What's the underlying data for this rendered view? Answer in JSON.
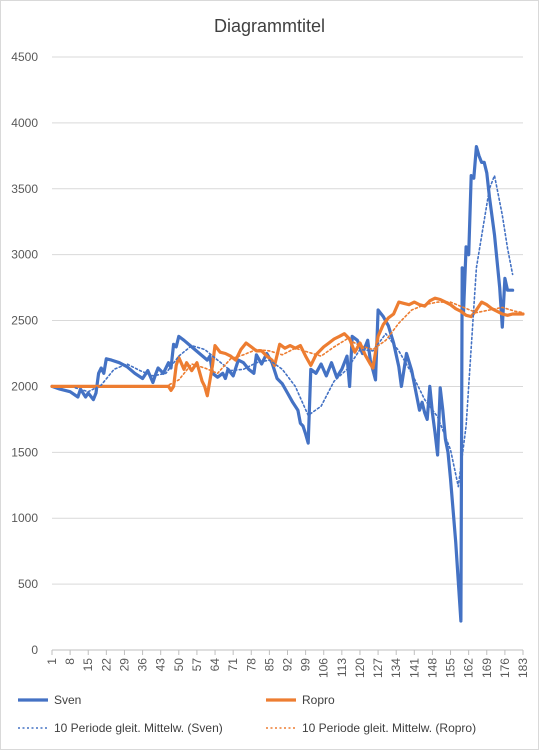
{
  "chart_data": {
    "type": "line",
    "title": "Diagrammtitel",
    "xlabel": "",
    "ylabel": "",
    "ylim": [
      0,
      4500
    ],
    "yticks": [
      0,
      500,
      1000,
      1500,
      2000,
      2500,
      3000,
      3500,
      4000,
      4500
    ],
    "xlim": [
      1,
      183
    ],
    "xticks": [
      1,
      8,
      15,
      22,
      29,
      36,
      43,
      50,
      57,
      64,
      71,
      78,
      85,
      92,
      99,
      106,
      113,
      120,
      127,
      134,
      141,
      148,
      155,
      162,
      169,
      176,
      183
    ],
    "grid": "horizontal",
    "legend_position": "bottom",
    "colors": {
      "sven": "#4472c4",
      "ropro": "#ed7d31",
      "grid": "#d9d9d9"
    },
    "legend": [
      {
        "label": "Sven",
        "style": "solid",
        "color": "#4472c4"
      },
      {
        "label": "Ropro",
        "style": "solid",
        "color": "#ed7d31"
      },
      {
        "label": "10 Periode gleit. Mittelw. (Sven)",
        "style": "dotted",
        "color": "#4472c4"
      },
      {
        "label": "10 Periode gleit. Mittelw. (Ropro)",
        "style": "dotted",
        "color": "#ed7d31"
      }
    ],
    "series": [
      {
        "name": "Sven",
        "style": "solid",
        "color": "#4472c4",
        "points": [
          [
            1,
            2000
          ],
          [
            4,
            1980
          ],
          [
            8,
            1960
          ],
          [
            11,
            1920
          ],
          [
            12,
            1980
          ],
          [
            14,
            1920
          ],
          [
            15,
            1950
          ],
          [
            17,
            1900
          ],
          [
            18,
            1950
          ],
          [
            19,
            2100
          ],
          [
            20,
            2140
          ],
          [
            21,
            2100
          ],
          [
            22,
            2210
          ],
          [
            24,
            2200
          ],
          [
            27,
            2180
          ],
          [
            30,
            2150
          ],
          [
            33,
            2100
          ],
          [
            36,
            2060
          ],
          [
            38,
            2120
          ],
          [
            40,
            2030
          ],
          [
            41,
            2090
          ],
          [
            42,
            2140
          ],
          [
            44,
            2100
          ],
          [
            46,
            2180
          ],
          [
            47,
            2140
          ],
          [
            48,
            2320
          ],
          [
            49,
            2300
          ],
          [
            50,
            2380
          ],
          [
            52,
            2350
          ],
          [
            55,
            2300
          ],
          [
            58,
            2250
          ],
          [
            61,
            2200
          ],
          [
            62,
            2230
          ],
          [
            63,
            2100
          ],
          [
            65,
            2070
          ],
          [
            67,
            2100
          ],
          [
            68,
            2060
          ],
          [
            69,
            2130
          ],
          [
            71,
            2080
          ],
          [
            73,
            2200
          ],
          [
            75,
            2180
          ],
          [
            77,
            2130
          ],
          [
            79,
            2100
          ],
          [
            80,
            2240
          ],
          [
            82,
            2170
          ],
          [
            84,
            2250
          ],
          [
            86,
            2180
          ],
          [
            88,
            2060
          ],
          [
            90,
            2020
          ],
          [
            92,
            1950
          ],
          [
            94,
            1880
          ],
          [
            96,
            1820
          ],
          [
            97,
            1720
          ],
          [
            98,
            1700
          ],
          [
            99,
            1640
          ],
          [
            100,
            1570
          ],
          [
            101,
            2130
          ],
          [
            103,
            2100
          ],
          [
            105,
            2170
          ],
          [
            107,
            2080
          ],
          [
            109,
            2180
          ],
          [
            111,
            2070
          ],
          [
            113,
            2130
          ],
          [
            115,
            2230
          ],
          [
            116,
            2000
          ],
          [
            117,
            2380
          ],
          [
            119,
            2350
          ],
          [
            121,
            2250
          ],
          [
            123,
            2350
          ],
          [
            124,
            2200
          ],
          [
            126,
            2050
          ],
          [
            127,
            2580
          ],
          [
            129,
            2530
          ],
          [
            131,
            2460
          ],
          [
            133,
            2330
          ],
          [
            135,
            2150
          ],
          [
            136,
            2000
          ],
          [
            138,
            2250
          ],
          [
            140,
            2120
          ],
          [
            142,
            1920
          ],
          [
            143,
            1820
          ],
          [
            144,
            1880
          ],
          [
            145,
            1800
          ],
          [
            146,
            1750
          ],
          [
            147,
            2000
          ],
          [
            148,
            1800
          ],
          [
            149,
            1650
          ],
          [
            150,
            1480
          ],
          [
            151,
            1990
          ],
          [
            152,
            1820
          ],
          [
            153,
            1600
          ],
          [
            154,
            1500
          ],
          [
            155,
            1300
          ],
          [
            156,
            1060
          ],
          [
            157,
            820
          ],
          [
            158,
            520
          ],
          [
            159,
            220
          ],
          [
            159.5,
            2900
          ],
          [
            160,
            2560
          ],
          [
            161,
            3060
          ],
          [
            162,
            3000
          ],
          [
            163,
            3600
          ],
          [
            164,
            3580
          ],
          [
            165,
            3820
          ],
          [
            166,
            3750
          ],
          [
            167,
            3700
          ],
          [
            168,
            3700
          ],
          [
            169,
            3620
          ],
          [
            170,
            3440
          ],
          [
            172,
            3150
          ],
          [
            174,
            2750
          ],
          [
            175,
            2450
          ],
          [
            176,
            2820
          ],
          [
            177,
            2730
          ],
          [
            179,
            2730
          ]
        ]
      },
      {
        "name": "Ropro",
        "style": "solid",
        "color": "#ed7d31",
        "points": [
          [
            1,
            2000
          ],
          [
            46,
            2000
          ],
          [
            47,
            1970
          ],
          [
            48,
            2000
          ],
          [
            49,
            2160
          ],
          [
            50,
            2220
          ],
          [
            52,
            2130
          ],
          [
            53,
            2180
          ],
          [
            55,
            2120
          ],
          [
            57,
            2180
          ],
          [
            59,
            2040
          ],
          [
            60,
            2000
          ],
          [
            61,
            1930
          ],
          [
            63,
            2160
          ],
          [
            64,
            2310
          ],
          [
            66,
            2260
          ],
          [
            68,
            2250
          ],
          [
            70,
            2230
          ],
          [
            72,
            2200
          ],
          [
            74,
            2280
          ],
          [
            76,
            2330
          ],
          [
            78,
            2300
          ],
          [
            80,
            2270
          ],
          [
            82,
            2270
          ],
          [
            84,
            2230
          ],
          [
            86,
            2200
          ],
          [
            87,
            2160
          ],
          [
            89,
            2320
          ],
          [
            91,
            2290
          ],
          [
            93,
            2310
          ],
          [
            95,
            2290
          ],
          [
            97,
            2310
          ],
          [
            99,
            2230
          ],
          [
            101,
            2160
          ],
          [
            103,
            2240
          ],
          [
            106,
            2300
          ],
          [
            108,
            2330
          ],
          [
            110,
            2360
          ],
          [
            112,
            2380
          ],
          [
            114,
            2400
          ],
          [
            116,
            2360
          ],
          [
            118,
            2260
          ],
          [
            120,
            2330
          ],
          [
            122,
            2240
          ],
          [
            124,
            2170
          ],
          [
            125,
            2140
          ],
          [
            127,
            2380
          ],
          [
            129,
            2470
          ],
          [
            131,
            2520
          ],
          [
            133,
            2550
          ],
          [
            135,
            2640
          ],
          [
            137,
            2630
          ],
          [
            139,
            2620
          ],
          [
            141,
            2640
          ],
          [
            143,
            2620
          ],
          [
            145,
            2610
          ],
          [
            147,
            2650
          ],
          [
            149,
            2670
          ],
          [
            151,
            2660
          ],
          [
            153,
            2640
          ],
          [
            155,
            2620
          ],
          [
            157,
            2590
          ],
          [
            159,
            2570
          ],
          [
            161,
            2540
          ],
          [
            163,
            2530
          ],
          [
            165,
            2580
          ],
          [
            167,
            2640
          ],
          [
            169,
            2620
          ],
          [
            171,
            2590
          ],
          [
            173,
            2570
          ],
          [
            175,
            2550
          ],
          [
            177,
            2540
          ],
          [
            179,
            2550
          ],
          [
            183,
            2550
          ]
        ]
      },
      {
        "name": "10 Periode gleit. Mittelw. (Sven)",
        "style": "dotted",
        "color": "#4472c4",
        "points": [
          [
            10,
            1990
          ],
          [
            15,
            1960
          ],
          [
            20,
            2010
          ],
          [
            25,
            2130
          ],
          [
            30,
            2170
          ],
          [
            35,
            2120
          ],
          [
            40,
            2080
          ],
          [
            45,
            2100
          ],
          [
            50,
            2230
          ],
          [
            55,
            2310
          ],
          [
            60,
            2280
          ],
          [
            65,
            2200
          ],
          [
            70,
            2120
          ],
          [
            75,
            2130
          ],
          [
            80,
            2180
          ],
          [
            85,
            2200
          ],
          [
            90,
            2130
          ],
          [
            95,
            2000
          ],
          [
            100,
            1780
          ],
          [
            105,
            1850
          ],
          [
            110,
            2040
          ],
          [
            115,
            2130
          ],
          [
            120,
            2280
          ],
          [
            125,
            2270
          ],
          [
            130,
            2400
          ],
          [
            135,
            2270
          ],
          [
            140,
            2100
          ],
          [
            145,
            1900
          ],
          [
            150,
            1770
          ],
          [
            155,
            1520
          ],
          [
            158,
            1240
          ],
          [
            161,
            1700
          ],
          [
            165,
            2900
          ],
          [
            170,
            3500
          ],
          [
            172,
            3600
          ],
          [
            175,
            3300
          ],
          [
            177,
            3050
          ],
          [
            179,
            2850
          ]
        ]
      },
      {
        "name": "10 Periode gleit. Mittelw. (Ropro)",
        "style": "dotted",
        "color": "#ed7d31",
        "points": [
          [
            10,
            2000
          ],
          [
            45,
            2000
          ],
          [
            50,
            2050
          ],
          [
            55,
            2170
          ],
          [
            60,
            2140
          ],
          [
            65,
            2100
          ],
          [
            70,
            2210
          ],
          [
            75,
            2240
          ],
          [
            80,
            2280
          ],
          [
            85,
            2270
          ],
          [
            90,
            2240
          ],
          [
            95,
            2290
          ],
          [
            100,
            2260
          ],
          [
            105,
            2230
          ],
          [
            110,
            2300
          ],
          [
            115,
            2360
          ],
          [
            120,
            2310
          ],
          [
            125,
            2280
          ],
          [
            130,
            2350
          ],
          [
            135,
            2480
          ],
          [
            140,
            2580
          ],
          [
            145,
            2620
          ],
          [
            150,
            2640
          ],
          [
            155,
            2640
          ],
          [
            160,
            2600
          ],
          [
            165,
            2560
          ],
          [
            170,
            2580
          ],
          [
            175,
            2600
          ],
          [
            180,
            2570
          ],
          [
            183,
            2560
          ]
        ]
      }
    ]
  }
}
